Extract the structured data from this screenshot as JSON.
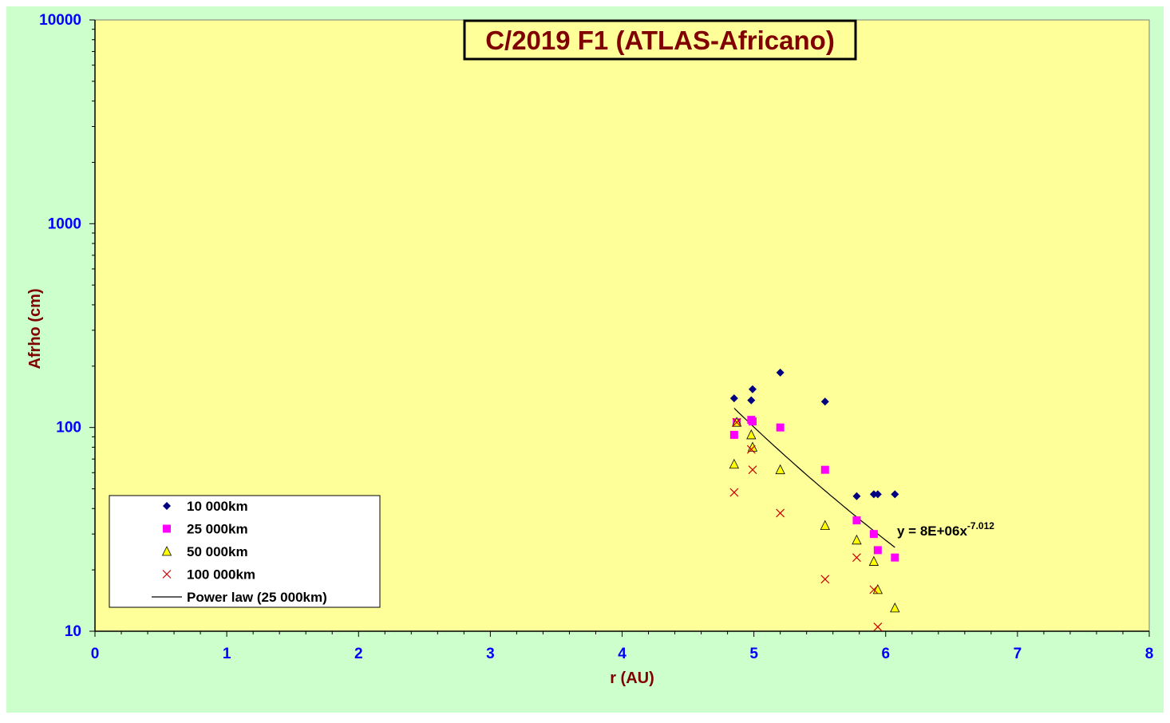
{
  "colors": {
    "outer_background": "#ccffcc",
    "plot_background": "#ffff99",
    "title_text": "#800000",
    "axis_title_text": "#800000",
    "tick_label_text": "#0000ff",
    "axis_line": "#000000"
  },
  "chart_data": {
    "type": "scatter",
    "title": "C/2019 F1 (ATLAS-Africano)",
    "xlabel": "r (AU)",
    "ylabel": "Afrho (cm)",
    "xlim": [
      0,
      8
    ],
    "ylim": [
      10,
      10000
    ],
    "yscale": "log",
    "grid": false,
    "legend_position": "bottom-left",
    "x_ticks": [
      "0",
      "1",
      "2",
      "3",
      "4",
      "5",
      "6",
      "7",
      "8"
    ],
    "y_ticks": [
      "10",
      "100",
      "1000",
      "10000"
    ],
    "series": [
      {
        "name": "10 000km",
        "marker": "diamond",
        "color": "#000080",
        "points": [
          [
            4.85,
            139
          ],
          [
            4.98,
            136
          ],
          [
            4.99,
            154
          ],
          [
            5.2,
            186
          ],
          [
            5.54,
            134
          ],
          [
            5.78,
            46
          ],
          [
            5.91,
            47
          ],
          [
            5.94,
            47
          ],
          [
            6.07,
            47
          ]
        ]
      },
      {
        "name": "25 000km",
        "marker": "square",
        "color": "#ff00ff",
        "points": [
          [
            4.85,
            92
          ],
          [
            4.87,
            106
          ],
          [
            4.98,
            109
          ],
          [
            4.99,
            107
          ],
          [
            5.2,
            100
          ],
          [
            5.54,
            62
          ],
          [
            5.78,
            35
          ],
          [
            5.91,
            30
          ],
          [
            5.94,
            25
          ],
          [
            6.07,
            23
          ]
        ]
      },
      {
        "name": "50 000km",
        "marker": "triangle",
        "color": "#ffff00",
        "points": [
          [
            4.85,
            66
          ],
          [
            4.87,
            106
          ],
          [
            4.98,
            92
          ],
          [
            4.99,
            80
          ],
          [
            5.2,
            62
          ],
          [
            5.54,
            33
          ],
          [
            5.78,
            28
          ],
          [
            5.91,
            22
          ],
          [
            5.94,
            16
          ],
          [
            6.07,
            13
          ]
        ]
      },
      {
        "name": "100 000km",
        "marker": "x",
        "color": "#cc0000",
        "points": [
          [
            4.85,
            48
          ],
          [
            4.87,
            106
          ],
          [
            4.98,
            78
          ],
          [
            4.99,
            62
          ],
          [
            5.2,
            38
          ],
          [
            5.54,
            18
          ],
          [
            5.78,
            23
          ],
          [
            5.91,
            16
          ],
          [
            5.94,
            10.5
          ]
        ]
      },
      {
        "name": "Power law (25 000km)",
        "type": "line",
        "color": "#000000",
        "x_range": [
          4.85,
          6.07
        ],
        "coefficient": 8000000,
        "exponent": -7.012
      }
    ],
    "annotation": {
      "text_main": "y = 8E+06x",
      "text_sup": "-7.012"
    }
  }
}
